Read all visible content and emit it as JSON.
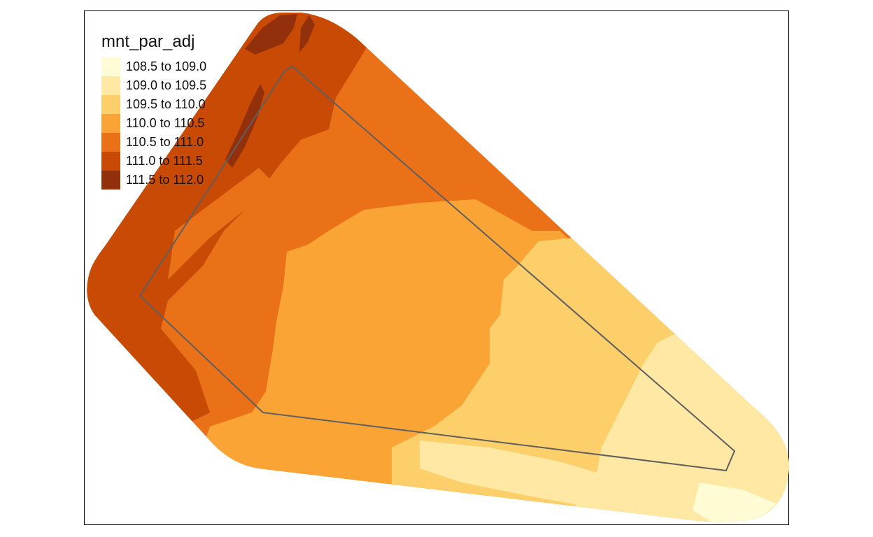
{
  "legend": {
    "title": "mnt_par_adj",
    "classes": [
      {
        "label": "108.5 to 109.0",
        "color": "#FFFBD5"
      },
      {
        "label": "109.0 to 109.5",
        "color": "#FEE8A3"
      },
      {
        "label": "109.5 to 110.0",
        "color": "#FDCF6B"
      },
      {
        "label": "110.0 to 110.5",
        "color": "#FBA436"
      },
      {
        "label": "110.5 to 111.0",
        "color": "#EA7117"
      },
      {
        "label": "111.0 to 111.5",
        "color": "#C84A04"
      },
      {
        "label": "111.5 to 112.0",
        "color": "#92300B"
      }
    ]
  },
  "boundary_color": "#5F5F5F"
}
